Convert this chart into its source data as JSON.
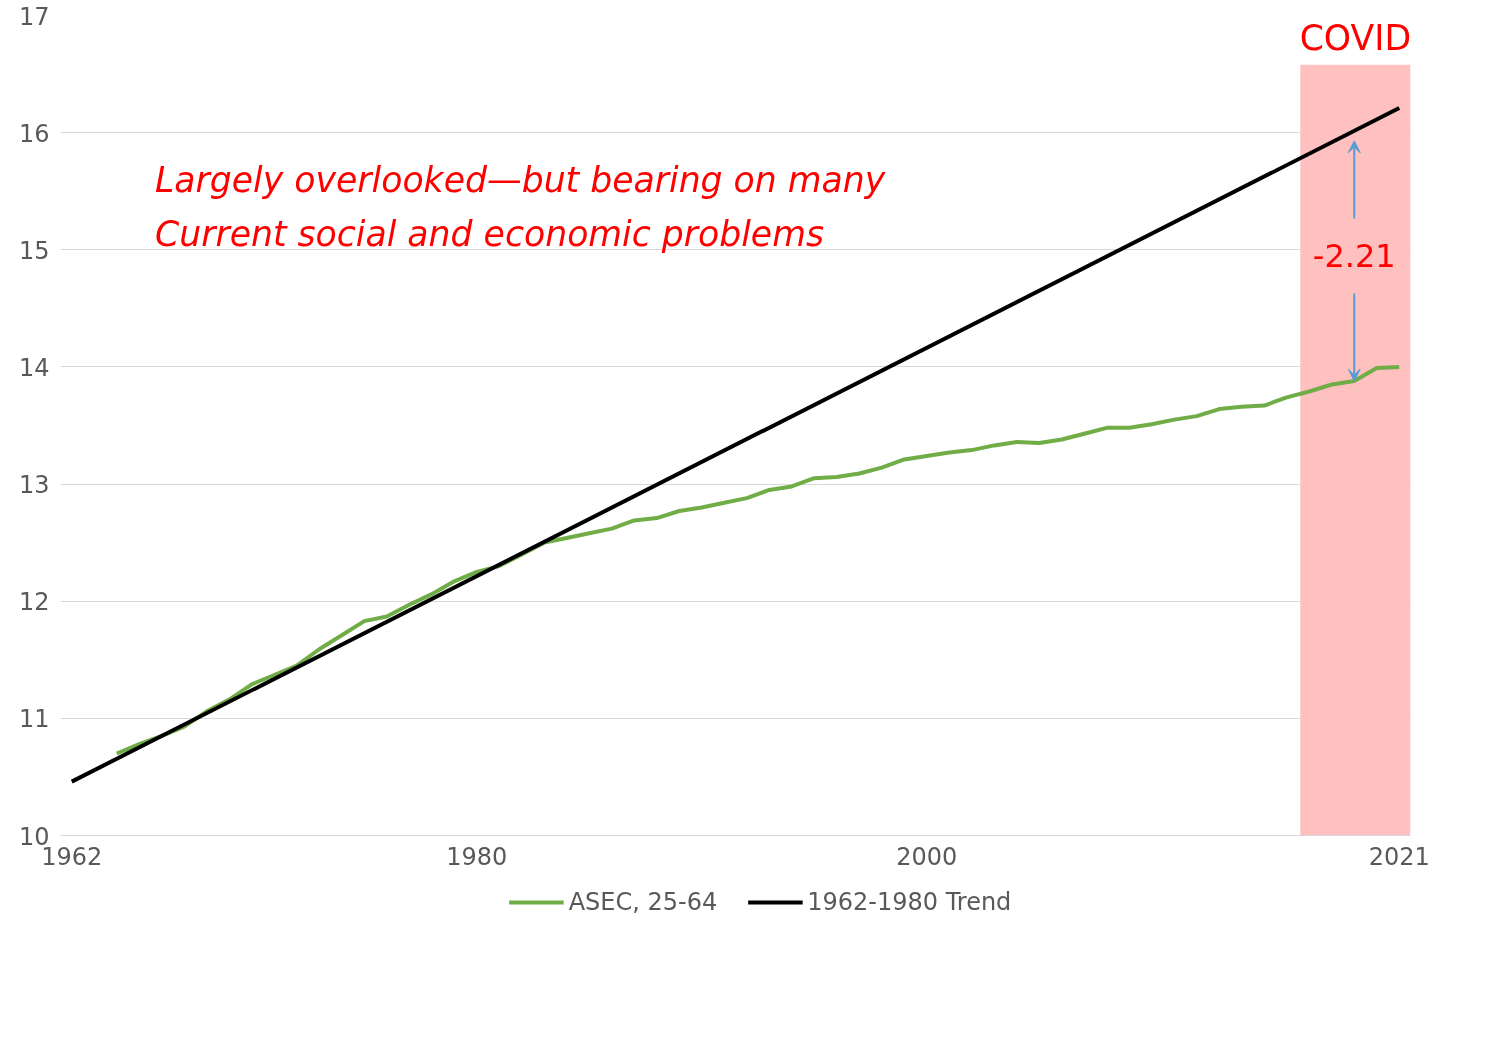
{
  "chart_data": {
    "type": "line",
    "x": [
      1964,
      1965,
      1966,
      1967,
      1968,
      1969,
      1970,
      1971,
      1972,
      1973,
      1974,
      1975,
      1976,
      1977,
      1978,
      1979,
      1980,
      1981,
      1982,
      1983,
      1984,
      1985,
      1986,
      1987,
      1988,
      1989,
      1990,
      1991,
      1992,
      1993,
      1994,
      1995,
      1996,
      1997,
      1998,
      1999,
      2000,
      2001,
      2002,
      2003,
      2004,
      2005,
      2006,
      2007,
      2008,
      2009,
      2010,
      2011,
      2012,
      2013,
      2014,
      2015,
      2016,
      2017,
      2018,
      2019,
      2020,
      2021
    ],
    "series": [
      {
        "name": "ASEC, 25-64",
        "color": "#70ad47",
        "values": [
          10.7,
          10.78,
          10.85,
          10.93,
          11.06,
          11.16,
          11.29,
          11.37,
          11.45,
          11.59,
          11.71,
          11.83,
          11.87,
          11.97,
          12.06,
          12.17,
          12.25,
          12.3,
          12.4,
          12.5,
          12.54,
          12.58,
          12.62,
          12.69,
          12.71,
          12.77,
          12.8,
          12.84,
          12.88,
          12.95,
          12.98,
          13.05,
          13.06,
          13.09,
          13.14,
          13.21,
          13.24,
          13.27,
          13.29,
          13.33,
          13.36,
          13.35,
          13.38,
          13.43,
          13.48,
          13.48,
          13.51,
          13.55,
          13.58,
          13.64,
          13.66,
          13.67,
          13.74,
          13.79,
          13.85,
          13.88,
          13.99,
          14.0
        ]
      },
      {
        "name": "1962-1980 Trend",
        "color": "#000000",
        "x": [
          1962,
          2021
        ],
        "values": [
          10.46,
          16.21
        ]
      }
    ],
    "xlim": [
      1961.5,
      2021.5
    ],
    "xticks": [
      1962,
      1980,
      2000,
      2021
    ],
    "ylim": [
      10,
      17
    ],
    "yticks": [
      10,
      11,
      12,
      13,
      14,
      15,
      16,
      17
    ],
    "grid": "y",
    "legend": "bottom",
    "marker": "none",
    "line_style": "solid",
    "bands": [
      {
        "axis": "x",
        "from": 2016.6,
        "to": 2021.5,
        "label": "COVID",
        "color": "#ffc0c0"
      }
    ],
    "annotations": [
      "Largely overlooked—but bearing on many",
      "Current social and economic problems",
      {
        "text": "-2.21",
        "x": 2019,
        "y": 13.88
      }
    ]
  }
}
